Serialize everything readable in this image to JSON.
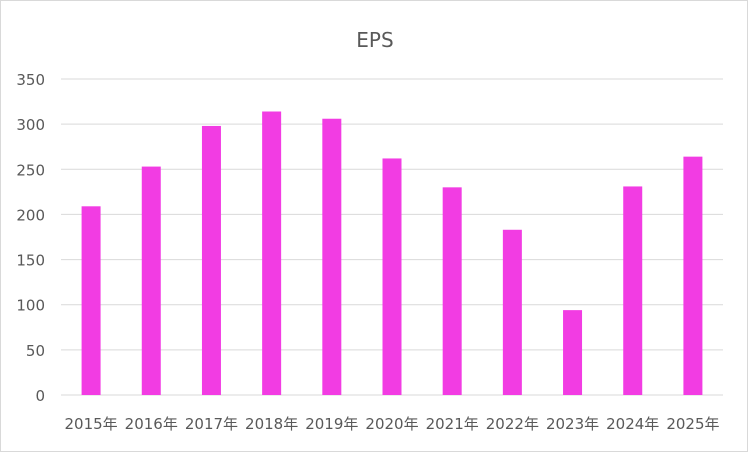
{
  "chart_data": {
    "type": "bar",
    "title": "EPS",
    "xlabel": "",
    "ylabel": "",
    "categories": [
      "2015年",
      "2016年",
      "2017年",
      "2018年",
      "2019年",
      "2020年",
      "2021年",
      "2022年",
      "2023年",
      "2024年",
      "2025年"
    ],
    "values": [
      209,
      253,
      298,
      314,
      306,
      262,
      230,
      183,
      94,
      231,
      264
    ],
    "ylim": [
      0,
      350
    ],
    "yticks": [
      0,
      50,
      100,
      150,
      200,
      250,
      300,
      350
    ],
    "grid": true,
    "legend": "none",
    "bar_color": "#f23ce3",
    "grid_color": "#d9d9d9",
    "text_color": "#595959"
  }
}
